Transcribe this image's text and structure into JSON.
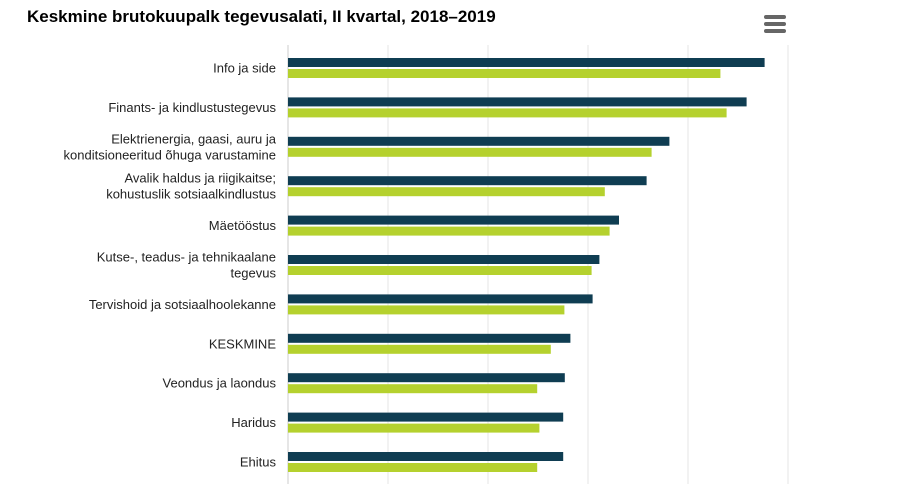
{
  "title": "Keskmine brutokuupalk tegevusalati, II kvartal, 2018–2019",
  "menu": {
    "icon": "hamburger-menu-icon"
  },
  "colors": {
    "series_2019": "#0f3d52",
    "series_2018": "#b5d12e",
    "grid": "#e6e6e6"
  },
  "chart_data": {
    "type": "bar",
    "orientation": "horizontal",
    "title": "Keskmine brutokuupalk tegevusalati, II kvartal, 2018–2019",
    "xlabel": "",
    "ylabel": "",
    "xlim": [
      0,
      2500
    ],
    "grid": true,
    "categories": [
      [
        "Info ja side"
      ],
      [
        "Finants- ja kindlustustegevus"
      ],
      [
        "Elektrienergia, gaasi, auru ja",
        "konditsioneeritud õhuga varustamine"
      ],
      [
        "Avalik haldus ja riigikaitse;",
        "kohustuslik sotsiaalkindlustus"
      ],
      [
        "Mäetööstus"
      ],
      [
        "Kutse-, teadus- ja tehnikaalane",
        "tegevus"
      ],
      [
        "Tervishoid ja sotsiaalhoolekanne"
      ],
      [
        "KESKMINE"
      ],
      [
        "Veondus ja laondus"
      ],
      [
        "Haridus"
      ],
      [
        "Ehitus"
      ]
    ],
    "series": [
      {
        "values": [
          2383,
          2293,
          1907,
          1793,
          1655,
          1557,
          1523,
          1412,
          1384,
          1376,
          1376
        ]
      },
      {
        "values": [
          2162,
          2193,
          1818,
          1584,
          1608,
          1518,
          1382,
          1314,
          1246,
          1257,
          1246
        ]
      }
    ]
  }
}
